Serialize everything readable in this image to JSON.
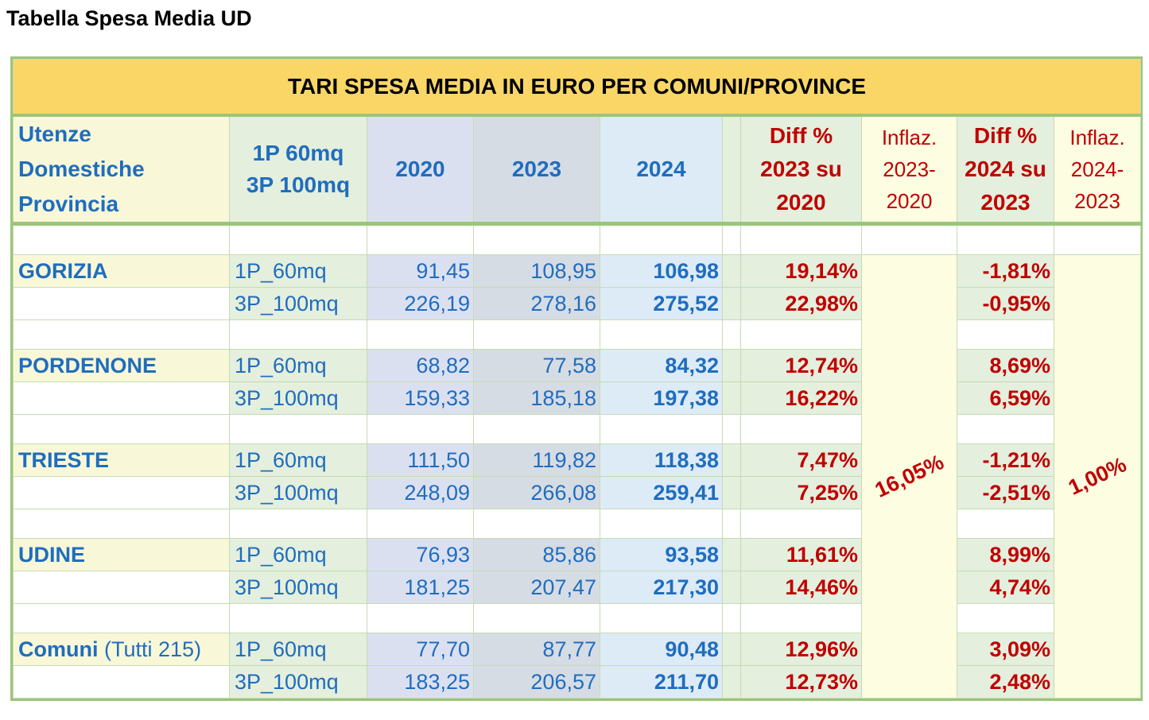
{
  "page_title": "Tabella Spesa Media UD",
  "table_title": "TARI SPESA MEDIA IN EURO PER  COMUNI/PROVINCE",
  "headers": {
    "label": [
      "Utenze",
      "Domestiche",
      "Provincia"
    ],
    "type": [
      "1P 60mq",
      "3P 100mq"
    ],
    "y2020": "2020",
    "y2023": "2023",
    "y2024": "2024",
    "diff1": [
      "Diff %",
      "2023 su",
      "2020"
    ],
    "infl1": [
      "Inflaz.",
      "2023-",
      "2020"
    ],
    "diff2": [
      "Diff %",
      "2024 su",
      "2023"
    ],
    "infl2": [
      "Inflaz.",
      "2024-",
      "2023"
    ]
  },
  "inflation": {
    "infl1": "16,05%",
    "infl2": "1,00%"
  },
  "groups": [
    {
      "name": "GORIZIA",
      "note": "",
      "rows": [
        {
          "type": "1P_60mq",
          "y2020": "91,45",
          "y2023": "108,95",
          "y2024": "106,98",
          "diff1": "19,14%",
          "diff2": "-1,81%"
        },
        {
          "type": "3P_100mq",
          "y2020": "226,19",
          "y2023": "278,16",
          "y2024": "275,52",
          "diff1": "22,98%",
          "diff2": "-0,95%"
        }
      ]
    },
    {
      "name": "PORDENONE",
      "note": "",
      "rows": [
        {
          "type": "1P_60mq",
          "y2020": "68,82",
          "y2023": "77,58",
          "y2024": "84,32",
          "diff1": "12,74%",
          "diff2": "8,69%"
        },
        {
          "type": "3P_100mq",
          "y2020": "159,33",
          "y2023": "185,18",
          "y2024": "197,38",
          "diff1": "16,22%",
          "diff2": "6,59%"
        }
      ]
    },
    {
      "name": "TRIESTE",
      "note": "",
      "rows": [
        {
          "type": "1P_60mq",
          "y2020": "111,50",
          "y2023": "119,82",
          "y2024": "118,38",
          "diff1": "7,47%",
          "diff2": "-1,21%"
        },
        {
          "type": "3P_100mq",
          "y2020": "248,09",
          "y2023": "266,08",
          "y2024": "259,41",
          "diff1": "7,25%",
          "diff2": "-2,51%"
        }
      ]
    },
    {
      "name": "UDINE",
      "note": "",
      "rows": [
        {
          "type": "1P_60mq",
          "y2020": "76,93",
          "y2023": "85,86",
          "y2024": "93,58",
          "diff1": "11,61%",
          "diff2": "8,99%"
        },
        {
          "type": "3P_100mq",
          "y2020": "181,25",
          "y2023": "207,47",
          "y2024": "217,30",
          "diff1": "14,46%",
          "diff2": "4,74%"
        }
      ]
    },
    {
      "name": "Comuni",
      "note": "(Tutti 215)",
      "rows": [
        {
          "type": "1P_60mq",
          "y2020": "77,70",
          "y2023": "87,77",
          "y2024": "90,48",
          "diff1": "12,96%",
          "diff2": "3,09%"
        },
        {
          "type": "3P_100mq",
          "y2020": "183,25",
          "y2023": "206,57",
          "y2024": "211,70",
          "diff1": "12,73%",
          "diff2": "2,48%"
        }
      ]
    }
  ]
}
